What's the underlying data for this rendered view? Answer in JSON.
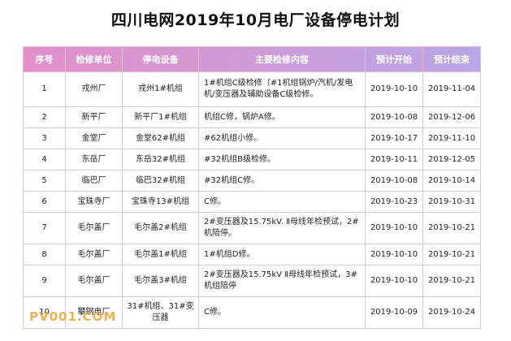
{
  "title": "四川电网2019年10月电厂设备停电计划",
  "colors": {
    "header_gradient_start": "#e38fc8",
    "header_gradient_end": "#b8a6e6",
    "border": "#dcc7d2"
  },
  "table": {
    "headers": [
      "序号",
      "检修单位",
      "停电设备",
      "主要检修内容",
      "预计开始",
      "预计结束"
    ],
    "rows": [
      {
        "no": "1",
        "unit": "戎州厂",
        "equipment": "戎州1#机组",
        "content": "1#机组C级检修（#1机组锅炉/汽机/发电机/变压器及辅助设备C级检修。",
        "start": "2019-10-10",
        "end": "2019-11-04"
      },
      {
        "no": "2",
        "unit": "新平厂",
        "equipment": "新平厂1#机组",
        "content": "机组C修，锅炉A修。",
        "start": "2019-10-08",
        "end": "2019-12-06"
      },
      {
        "no": "3",
        "unit": "金堂厂",
        "equipment": "金堂62#机组",
        "content": "#62机组小修。",
        "start": "2019-10-17",
        "end": "2019-11-10"
      },
      {
        "no": "4",
        "unit": "东岳厂",
        "equipment": "东岳32#机组",
        "content": "#32机组B级检修。",
        "start": "2019-10-11",
        "end": "2019-12-05"
      },
      {
        "no": "5",
        "unit": "临巴厂",
        "equipment": "临巴32#机组",
        "content": "#32机组C修。",
        "start": "2019-10-08",
        "end": "2019-10-14"
      },
      {
        "no": "6",
        "unit": "宝珠寺厂",
        "equipment": "宝珠寺13#机组",
        "content": "C修。",
        "start": "2019-10-23",
        "end": "2019-10-31"
      },
      {
        "no": "7",
        "unit": "毛尔盖厂",
        "equipment": "毛尔盖2#机组",
        "content": "2#变压器及15.75kV. Ⅱ母线年检预试，2#机陪停。",
        "start": "2019-10-10",
        "end": "2019-10-21"
      },
      {
        "no": "8",
        "unit": "毛尔盖厂",
        "equipment": "毛尔盖1#机组",
        "content": "1#机组D修。",
        "start": "2019-10-10",
        "end": "2019-10-21"
      },
      {
        "no": "9",
        "unit": "毛尔盖厂",
        "equipment": "毛尔盖3#机组",
        "content": "2#变压器及15.75kV Ⅱ母线年检预试，3#机组陪停",
        "start": "2019-10-10",
        "end": "2019-10-21"
      },
      {
        "no": "10",
        "unit": "攀钢电厂",
        "equipment": "31#机组、31#变压器",
        "content": "C修。",
        "start": "2019-10-09",
        "end": "2019-10-24"
      }
    ]
  },
  "watermark": "PV001.COM"
}
